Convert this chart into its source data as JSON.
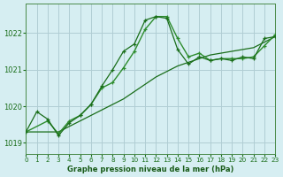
{
  "xlabel": "Graphe pression niveau de la mer (hPa)",
  "xlim": [
    0,
    23
  ],
  "ylim": [
    1018.7,
    1022.8
  ],
  "yticks": [
    1019,
    1020,
    1021,
    1022
  ],
  "xticks": [
    0,
    1,
    2,
    3,
    4,
    5,
    6,
    7,
    8,
    9,
    10,
    11,
    12,
    13,
    14,
    15,
    16,
    17,
    18,
    19,
    20,
    21,
    22,
    23
  ],
  "background_color": "#d6eef2",
  "grid_color": "#b0cdd4",
  "line_color": "#1a6e1a",
  "line_color2": "#2d8c2d",
  "series1_x": [
    0,
    1,
    2,
    3,
    4,
    5,
    6,
    7,
    8,
    9,
    10,
    11,
    12,
    13,
    14,
    15,
    16,
    17,
    18,
    19,
    20,
    21,
    22,
    23
  ],
  "series1_y": [
    1019.3,
    1019.85,
    1019.65,
    1019.2,
    1019.55,
    1019.75,
    1020.05,
    1020.55,
    1021.0,
    1021.5,
    1021.7,
    1022.35,
    1022.45,
    1022.4,
    1021.55,
    1021.15,
    1021.35,
    1021.25,
    1021.3,
    1021.25,
    1021.35,
    1021.3,
    1021.85,
    1021.9
  ],
  "series2_x": [
    0,
    1,
    2,
    3,
    4,
    5,
    6,
    7,
    8,
    9,
    10,
    11,
    12,
    13,
    14,
    15,
    16,
    17,
    18,
    19,
    20,
    21,
    22,
    23
  ],
  "series2_y": [
    1019.3,
    1019.3,
    1019.3,
    1019.3,
    1019.45,
    1019.6,
    1019.75,
    1019.9,
    1020.05,
    1020.2,
    1020.4,
    1020.6,
    1020.8,
    1020.95,
    1021.1,
    1021.2,
    1021.3,
    1021.4,
    1021.45,
    1021.5,
    1021.55,
    1021.6,
    1021.75,
    1021.9
  ],
  "series3_x": [
    0,
    2,
    3,
    4,
    5,
    6,
    7,
    8,
    9,
    10,
    11,
    12,
    13,
    14,
    15,
    16,
    17,
    18,
    19,
    20,
    21,
    22,
    23
  ],
  "series3_y": [
    1019.3,
    1019.6,
    1019.25,
    1019.6,
    1019.75,
    1020.05,
    1020.5,
    1020.65,
    1021.05,
    1021.5,
    1022.1,
    1022.45,
    1022.45,
    1021.85,
    1021.35,
    1021.45,
    1021.25,
    1021.3,
    1021.3,
    1021.3,
    1021.35,
    1021.65,
    1021.95
  ]
}
